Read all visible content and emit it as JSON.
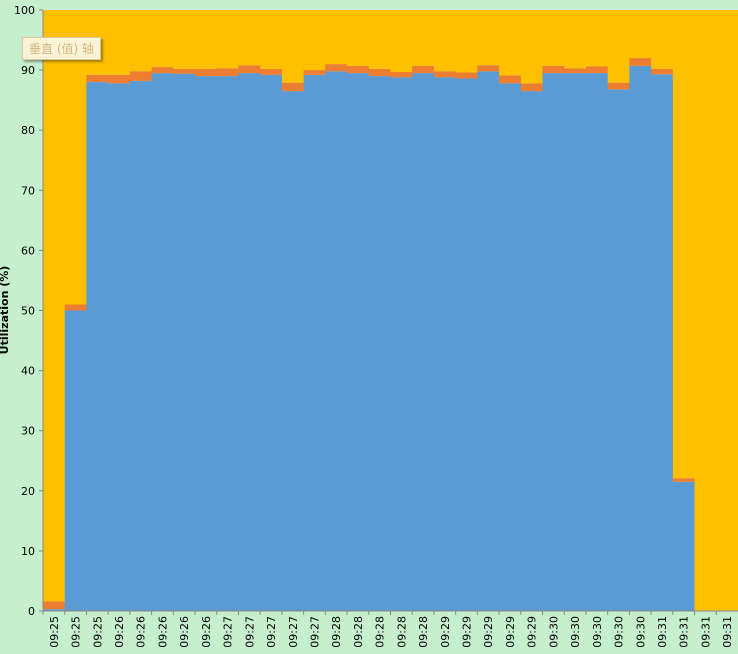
{
  "chart_data": {
    "type": "stacked-bar",
    "ylabel": "Utilization (%)",
    "ylim": [
      0,
      100
    ],
    "yticks": [
      0,
      10,
      20,
      30,
      40,
      50,
      60,
      70,
      80,
      90,
      100
    ],
    "grid": false,
    "tooltip": "垂直 (值) 轴",
    "categories": [
      "09:25",
      "09:25",
      "09:25",
      "09:26",
      "09:26",
      "09:26",
      "09:26",
      "09:26",
      "09:27",
      "09:27",
      "09:27",
      "09:27",
      "09:27",
      "09:28",
      "09:28",
      "09:28",
      "09:28",
      "09:28",
      "09:29",
      "09:29",
      "09:29",
      "09:29",
      "09:29",
      "09:30",
      "09:30",
      "09:30",
      "09:30",
      "09:30",
      "09:31",
      "09:31",
      "09:31",
      "09:31"
    ],
    "series": [
      {
        "color": "#5b9bd5",
        "values": [
          0.3,
          50,
          88,
          87.8,
          88.2,
          89.5,
          89.4,
          89,
          89,
          89.5,
          89.2,
          86.5,
          89.2,
          89.8,
          89.5,
          89,
          88.8,
          89.5,
          88.8,
          88.6,
          89.8,
          87.8,
          86.5,
          89.5,
          89.5,
          89.5,
          86.8,
          90.7,
          89.3,
          21.5,
          0,
          0
        ]
      },
      {
        "color": "#ed7d31",
        "values": [
          1.3,
          1,
          1.2,
          1.4,
          1.6,
          1.0,
          0.8,
          1.2,
          1.3,
          1.3,
          1.0,
          1.4,
          0.8,
          1.2,
          1.2,
          1.2,
          0.9,
          1.2,
          1.0,
          1.0,
          1.0,
          1.3,
          1.3,
          1.2,
          0.8,
          1.1,
          1.1,
          1.3,
          0.9,
          0.6,
          0,
          0
        ]
      },
      {
        "color": "#ffc000",
        "values": [
          98.4,
          49,
          10.8,
          10.8,
          10.2,
          9.5,
          9.8,
          9.8,
          9.7,
          9.2,
          9.8,
          12.1,
          10.0,
          9.0,
          9.3,
          9.8,
          10.3,
          9.3,
          10.2,
          10.4,
          9.2,
          10.9,
          12.2,
          9.3,
          9.7,
          9.4,
          12.1,
          8.0,
          9.8,
          77.9,
          100,
          100
        ]
      }
    ]
  }
}
